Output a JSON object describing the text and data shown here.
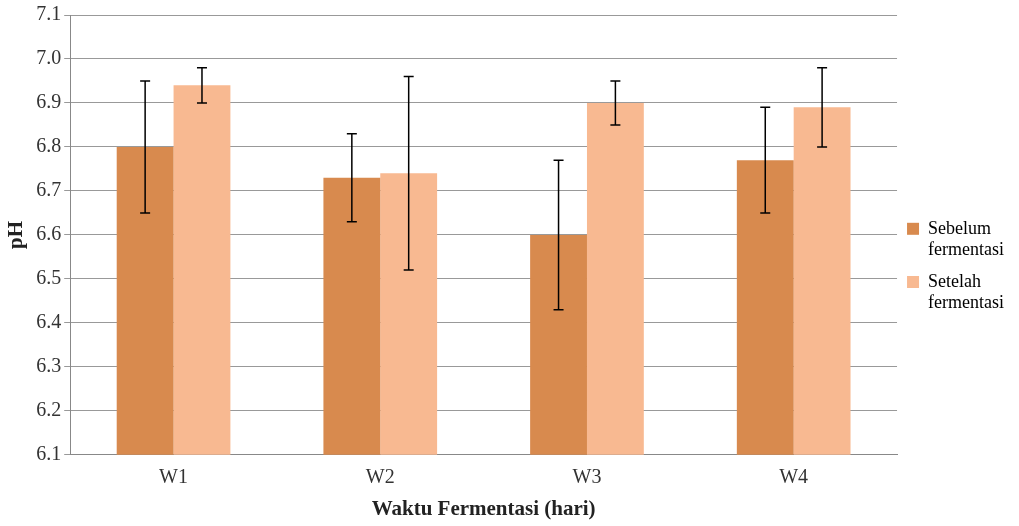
{
  "chart_data": {
    "type": "bar",
    "xlabel": "Waktu Fermentasi (hari)",
    "ylabel": "pH",
    "categories": [
      "W1",
      "W2",
      "W3",
      "W4"
    ],
    "series": [
      {
        "name": "Sebelum fermentasi",
        "color": "#d88a4e",
        "values": [
          6.8,
          6.73,
          6.6,
          6.77
        ],
        "errors": [
          0.15,
          0.1,
          0.17,
          0.12
        ]
      },
      {
        "name": "Setelah fermentasi",
        "color": "#f8b991",
        "values": [
          6.94,
          6.74,
          6.9,
          6.89
        ],
        "errors": [
          0.04,
          0.22,
          0.05,
          0.09
        ]
      }
    ],
    "ylim": [
      6.1,
      7.1
    ],
    "yticks": [
      {
        "value": 6.1,
        "label": "6.1"
      },
      {
        "value": 6.2,
        "label": "6.2"
      },
      {
        "value": 6.3,
        "label": "6.3"
      },
      {
        "value": 6.4,
        "label": "6.4"
      },
      {
        "value": 6.5,
        "label": "6.5"
      },
      {
        "value": 6.6,
        "label": "6.6"
      },
      {
        "value": 6.7,
        "label": "6.7"
      },
      {
        "value": 6.8,
        "label": "6.8"
      },
      {
        "value": 6.9,
        "label": "6.9"
      },
      {
        "value": 7.0,
        "label": "7.0"
      },
      {
        "value": 7.1,
        "label": "7.1"
      }
    ],
    "grid": "y",
    "legend": "right"
  }
}
